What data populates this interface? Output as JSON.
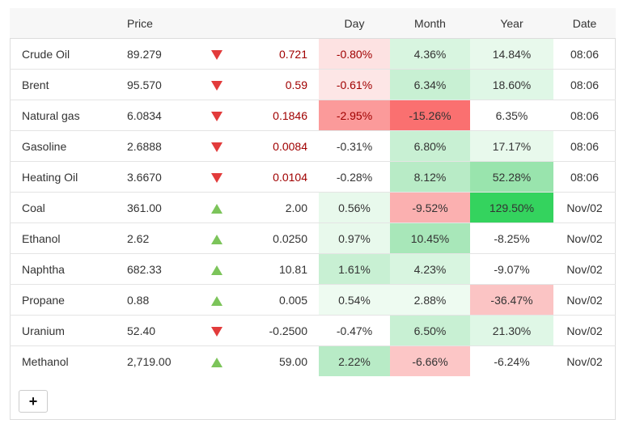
{
  "header": {
    "name": "",
    "price": "Price",
    "arrow": "",
    "change": "",
    "day": "Day",
    "month": "Month",
    "year": "Year",
    "date": "Date"
  },
  "rows": [
    {
      "name": "Crude Oil",
      "price": "89.279",
      "dir": "down",
      "change": "0.721",
      "day": "-0.80%",
      "month": "4.36%",
      "year": "14.84%",
      "date": "08:06",
      "colors": {
        "change": "#a00000",
        "day_bg": "#fde2e2",
        "month_bg": "#d8f5e0",
        "year_bg": "#e8f9ec"
      }
    },
    {
      "name": "Brent",
      "price": "95.570",
      "dir": "down",
      "change": "0.59",
      "day": "-0.61%",
      "month": "6.34%",
      "year": "18.60%",
      "date": "08:06",
      "colors": {
        "change": "#a00000",
        "day_bg": "#fde6e6",
        "month_bg": "#c8f0d3",
        "year_bg": "#dff7e6"
      }
    },
    {
      "name": "Natural gas",
      "price": "6.0834",
      "dir": "down",
      "change": "0.1846",
      "day": "-2.95%",
      "month": "-15.26%",
      "year": "6.35%",
      "date": "08:06",
      "colors": {
        "change": "#a00000",
        "day_bg": "#fb9a9a",
        "month_bg": "#fa7070",
        "year_bg": "#ffffff"
      }
    },
    {
      "name": "Gasoline",
      "price": "2.6888",
      "dir": "down",
      "change": "0.0084",
      "day": "-0.31%",
      "month": "6.80%",
      "year": "17.17%",
      "date": "08:06",
      "colors": {
        "change": "#a00000",
        "day_bg": "#ffffff",
        "month_bg": "#c8f0d3",
        "year_bg": "#e8f9ec"
      }
    },
    {
      "name": "Heating Oil",
      "price": "3.6670",
      "dir": "down",
      "change": "0.0104",
      "day": "-0.28%",
      "month": "8.12%",
      "year": "52.28%",
      "date": "08:06",
      "colors": {
        "change": "#a00000",
        "day_bg": "#ffffff",
        "month_bg": "#b8ebc6",
        "year_bg": "#99e4ad"
      }
    },
    {
      "name": "Coal",
      "price": "361.00",
      "dir": "up",
      "change": "2.00",
      "day": "0.56%",
      "month": "-9.52%",
      "year": "129.50%",
      "date": "Nov/02",
      "colors": {
        "change": "#333333",
        "day_bg": "#e8f9ec",
        "month_bg": "#fbb0b0",
        "year_bg": "#34d35e"
      }
    },
    {
      "name": "Ethanol",
      "price": "2.62",
      "dir": "up",
      "change": "0.0250",
      "day": "0.97%",
      "month": "10.45%",
      "year": "-8.25%",
      "date": "Nov/02",
      "colors": {
        "change": "#333333",
        "day_bg": "#e8f9ec",
        "month_bg": "#a8e7b9",
        "year_bg": "#ffffff"
      }
    },
    {
      "name": "Naphtha",
      "price": "682.33",
      "dir": "up",
      "change": "10.81",
      "day": "1.61%",
      "month": "4.23%",
      "year": "-9.07%",
      "date": "Nov/02",
      "colors": {
        "change": "#333333",
        "day_bg": "#c8f0d3",
        "month_bg": "#d8f5e0",
        "year_bg": "#ffffff"
      }
    },
    {
      "name": "Propane",
      "price": "0.88",
      "dir": "up",
      "change": "0.005",
      "day": "0.54%",
      "month": "2.88%",
      "year": "-36.47%",
      "date": "Nov/02",
      "colors": {
        "change": "#333333",
        "day_bg": "#eefbf1",
        "month_bg": "#eefbf1",
        "year_bg": "#fbc4c4"
      }
    },
    {
      "name": "Uranium",
      "price": "52.40",
      "dir": "down",
      "change": "-0.2500",
      "day": "-0.47%",
      "month": "6.50%",
      "year": "21.30%",
      "date": "Nov/02",
      "colors": {
        "change": "#333333",
        "day_bg": "#ffffff",
        "month_bg": "#c8f0d3",
        "year_bg": "#dff7e6"
      }
    },
    {
      "name": "Methanol",
      "price": "2,719.00",
      "dir": "up",
      "change": "59.00",
      "day": "2.22%",
      "month": "-6.66%",
      "year": "-6.24%",
      "date": "Nov/02",
      "colors": {
        "change": "#333333",
        "day_bg": "#b8ebc6",
        "month_bg": "#fcc6c6",
        "year_bg": "#ffffff"
      }
    }
  ],
  "add_button": {
    "label": "+",
    "icon": "plus-icon"
  }
}
